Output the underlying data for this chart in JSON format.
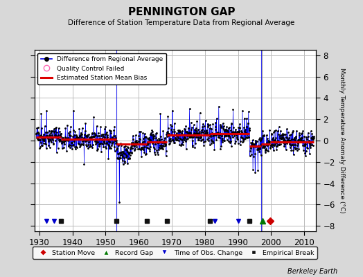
{
  "title": "PENNINGTON GAP",
  "subtitle": "Difference of Station Temperature Data from Regional Average",
  "ylabel": "Monthly Temperature Anomaly Difference (°C)",
  "xlabel_years": [
    1930,
    1940,
    1950,
    1960,
    1970,
    1980,
    1990,
    2000,
    2010
  ],
  "xlim": [
    1928.5,
    2013.5
  ],
  "ylim": [
    -8.5,
    8.5
  ],
  "yticks": [
    -8,
    -6,
    -4,
    -2,
    0,
    2,
    4,
    6,
    8
  ],
  "background_color": "#d8d8d8",
  "plot_bg_color": "#ffffff",
  "grid_color": "#bbbbbb",
  "berkeley_earth_text": "Berkeley Earth",
  "seed": 42,
  "bias_segments": [
    {
      "x_start": 1929.0,
      "x_end": 1936.5,
      "bias": 0.35
    },
    {
      "x_start": 1936.5,
      "x_end": 1953.3,
      "bias": 0.1
    },
    {
      "x_start": 1953.3,
      "x_end": 1957.5,
      "bias": -0.35
    },
    {
      "x_start": 1957.5,
      "x_end": 1962.5,
      "bias": -0.35
    },
    {
      "x_start": 1962.5,
      "x_end": 1968.5,
      "bias": -0.15
    },
    {
      "x_start": 1968.5,
      "x_end": 1981.5,
      "bias": 0.55
    },
    {
      "x_start": 1981.5,
      "x_end": 1993.5,
      "bias": 0.65
    },
    {
      "x_start": 1993.5,
      "x_end": 1997.0,
      "bias": -0.55
    },
    {
      "x_start": 1997.0,
      "x_end": 1999.8,
      "bias": -0.35
    },
    {
      "x_start": 1999.8,
      "x_end": 2013.0,
      "bias": -0.1
    }
  ],
  "vertical_lines_blue": [
    1953.3,
    1997.0
  ],
  "vertical_line_gray": 1997.1,
  "time_obs_change": [
    1932.0,
    1934.5,
    1983.0,
    1990.0
  ],
  "empirical_break": [
    1936.5,
    1953.3,
    1962.5,
    1968.5,
    1981.5,
    1993.5
  ],
  "station_move_x": 1999.8,
  "record_gap_x": 1997.5,
  "data_color": "#000000",
  "line_color": "#0000ee",
  "bias_color": "#dd0000",
  "qc_color": "#ff69b4",
  "marker_y": -7.5
}
